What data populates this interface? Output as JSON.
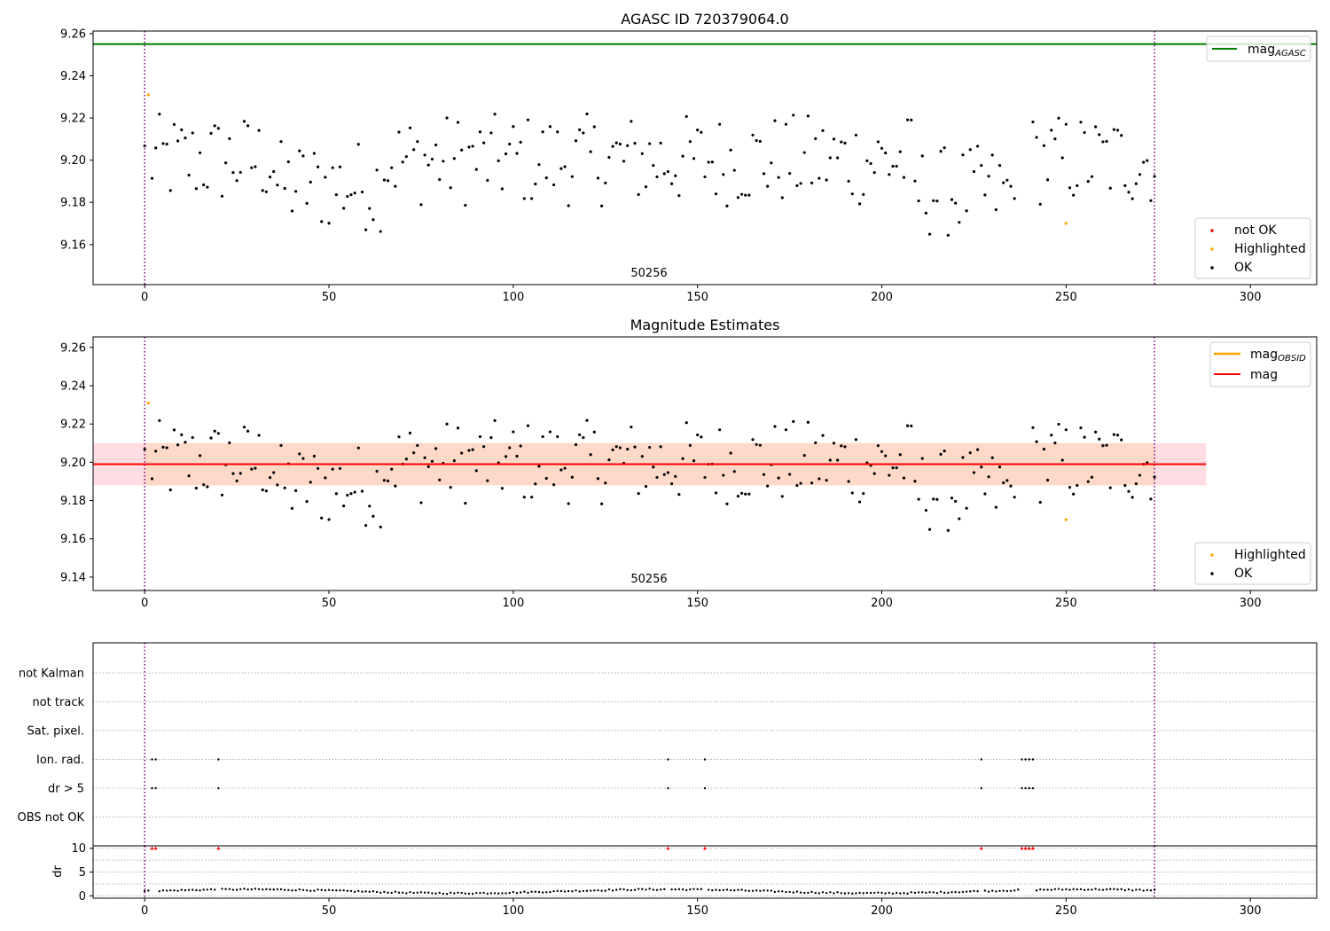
{
  "colors": {
    "ok": "#000000",
    "not_ok": "#ff0000",
    "highlighted": "#ffa500",
    "mag_agasc": "#008000",
    "mag_line": "#ff0000",
    "mag_obsid": "#ffa500",
    "band_pink": "#ffdde3",
    "band_orange": "#ffd9c8",
    "obs_boundary": "#800080",
    "grid": "#b0b0b0"
  },
  "chart_data": [
    {
      "id": "agasc",
      "type": "scatter",
      "title": "AGASC ID 720379064.0",
      "annotation": "50256",
      "xlim": [
        -14,
        318
      ],
      "ylim": [
        9.141,
        9.2612
      ],
      "xticks": [
        0,
        50,
        100,
        150,
        200,
        250,
        300
      ],
      "yticks": [
        9.16,
        9.18,
        9.2,
        9.22,
        9.24,
        9.26
      ],
      "ytick_labels": [
        "9.16",
        "9.18",
        "9.20",
        "9.22",
        "9.24",
        "9.26"
      ],
      "hlines": [
        {
          "label": "mag",
          "sub": "AGASC",
          "y": 9.255
        }
      ],
      "vlines": [
        0,
        274
      ],
      "legend_lines": [
        {
          "label": "mag",
          "sub": "AGASC"
        }
      ],
      "legend_points": [
        {
          "label": "not OK",
          "color_key": "not_ok"
        },
        {
          "label": "Highlighted",
          "color_key": "highlighted"
        },
        {
          "label": "OK",
          "color_key": "ok"
        }
      ],
      "highlighted": [
        [
          1,
          9.231
        ],
        [
          250,
          9.17
        ]
      ]
    },
    {
      "id": "estimates",
      "type": "scatter",
      "title": "Magnitude Estimates",
      "annotation": "50256",
      "xlim": [
        -14,
        318
      ],
      "ylim": [
        9.133,
        9.2655
      ],
      "xticks": [
        0,
        50,
        100,
        150,
        200,
        250,
        300
      ],
      "yticks": [
        9.14,
        9.16,
        9.18,
        9.2,
        9.22,
        9.24,
        9.26
      ],
      "ytick_labels": [
        "9.14",
        "9.16",
        "9.18",
        "9.20",
        "9.22",
        "9.24",
        "9.26"
      ],
      "mag": 9.199,
      "mag_band": [
        9.188,
        9.21
      ],
      "mag_obsid_band": [
        9.188,
        9.21
      ],
      "band_xrange": [
        -14,
        288
      ],
      "vlines": [
        0,
        274
      ],
      "legend_lines": [
        {
          "label": "mag",
          "sub": "OBSID"
        },
        {
          "label": "mag",
          "sub": ""
        }
      ],
      "legend_points": [
        {
          "label": "Highlighted",
          "color_key": "highlighted"
        },
        {
          "label": "OK",
          "color_key": "ok"
        }
      ],
      "highlighted": [
        [
          1,
          9.231
        ],
        [
          250,
          9.17
        ]
      ]
    },
    {
      "id": "flags",
      "type": "scatter",
      "xlim": [
        -14,
        318
      ],
      "categories": [
        "not Kalman",
        "not track",
        "Sat. pixel.",
        "Ion. rad.",
        "dr > 5",
        "OBS not OK"
      ],
      "flagged": {
        "Ion. rad.": [
          2,
          3,
          20,
          142,
          152,
          227,
          238,
          239,
          240,
          241
        ],
        "dr > 5": [
          2,
          3,
          20,
          142,
          152,
          227,
          238,
          239,
          240,
          241
        ]
      },
      "vlines": [
        0,
        274
      ]
    },
    {
      "id": "dr",
      "type": "scatter",
      "ylabel": "dr",
      "xlim": [
        -14,
        318
      ],
      "ylim": [
        -0.5,
        10.5
      ],
      "xticks": [
        0,
        50,
        100,
        150,
        200,
        250,
        300
      ],
      "yticks": [
        0,
        5,
        10
      ],
      "ytick_labels": [
        "0",
        "5",
        "10"
      ],
      "clipped_markers": [
        2,
        3,
        20,
        142,
        152,
        227,
        238,
        239,
        240,
        241
      ],
      "vlines": [
        0,
        274
      ]
    }
  ]
}
